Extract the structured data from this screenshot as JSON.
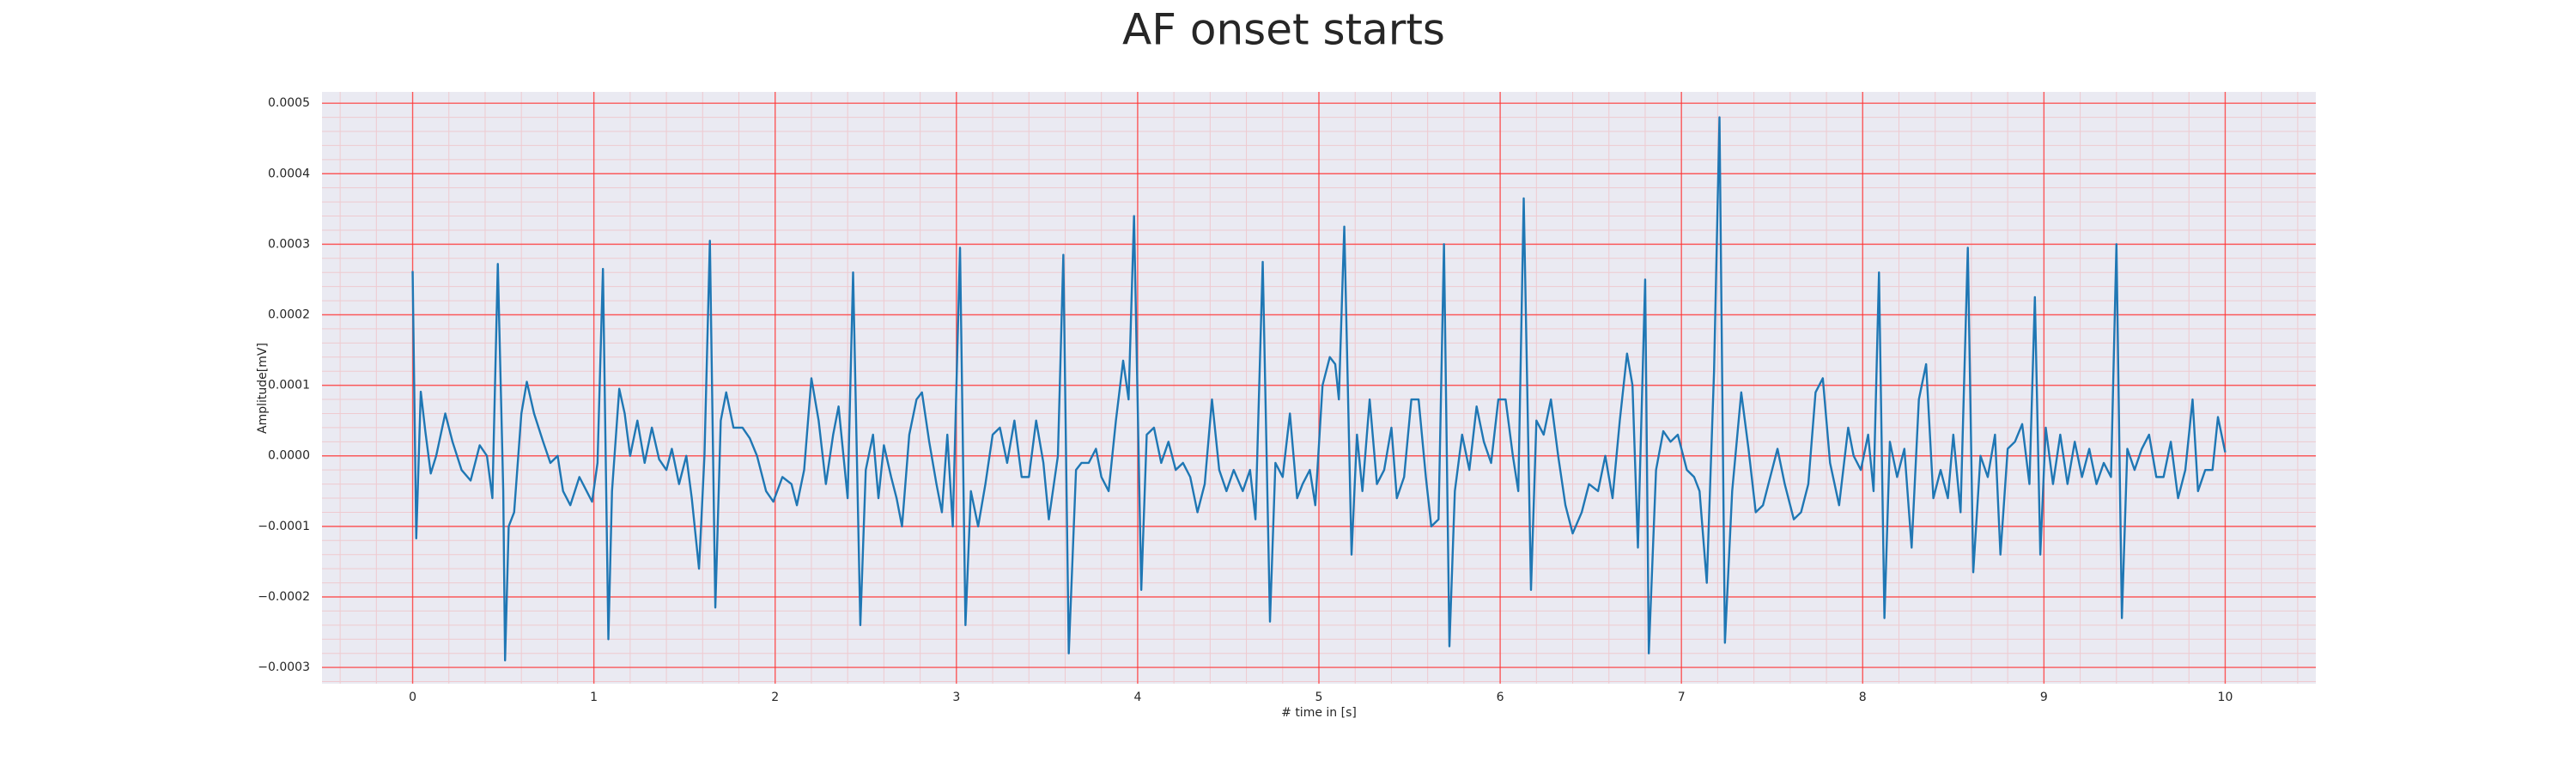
{
  "chart_data": {
    "type": "line",
    "title": "AF onset starts",
    "x_label": "# time in [s]",
    "y_label": "Amplitude[mV]",
    "color": "#1f77b4",
    "grid": true,
    "minor_grid": true,
    "xlim": [
      -0.5,
      10.5
    ],
    "ylim": [
      -0.000323,
      0.000516
    ],
    "xticks": [
      0,
      1,
      2,
      3,
      4,
      5,
      6,
      7,
      8,
      9,
      10
    ],
    "yticks": [
      {
        "value": -0.0003,
        "label": "−0.0003"
      },
      {
        "value": -0.0002,
        "label": "−0.0002"
      },
      {
        "value": -0.0001,
        "label": "−0.0001"
      },
      {
        "value": 0,
        "label": "0.0000"
      },
      {
        "value": 0.0001,
        "label": "0.0001"
      },
      {
        "value": 0.0002,
        "label": "0.0002"
      },
      {
        "value": 0.0003,
        "label": "0.0003"
      },
      {
        "value": 0.0004,
        "label": "0.0004"
      },
      {
        "value": 0.0005,
        "label": "0.0005"
      }
    ],
    "x": [
      0,
      0.02,
      0.045,
      0.07,
      0.1,
      0.13,
      0.18,
      0.22,
      0.27,
      0.32,
      0.37,
      0.41,
      0.44,
      0.47,
      0.5,
      0.51,
      0.53,
      0.56,
      0.6,
      0.63,
      0.67,
      0.72,
      0.76,
      0.8,
      0.83,
      0.87,
      0.92,
      0.96,
      0.99,
      1.02,
      1.05,
      1.08,
      1.1,
      1.14,
      1.17,
      1.2,
      1.24,
      1.28,
      1.32,
      1.36,
      1.4,
      1.43,
      1.47,
      1.51,
      1.54,
      1.58,
      1.61,
      1.64,
      1.67,
      1.7,
      1.73,
      1.77,
      1.82,
      1.86,
      1.9,
      1.95,
      1.99,
      2.04,
      2.09,
      2.12,
      2.16,
      2.2,
      2.24,
      2.28,
      2.32,
      2.35,
      2.4,
      2.43,
      2.47,
      2.5,
      2.54,
      2.57,
      2.6,
      2.64,
      2.67,
      2.7,
      2.74,
      2.78,
      2.81,
      2.85,
      2.89,
      2.92,
      2.95,
      2.98,
      3.02,
      3.05,
      3.08,
      3.12,
      3.16,
      3.2,
      3.24,
      3.28,
      3.32,
      3.36,
      3.4,
      3.44,
      3.48,
      3.51,
      3.56,
      3.59,
      3.62,
      3.66,
      3.69,
      3.73,
      3.77,
      3.8,
      3.84,
      3.88,
      3.92,
      3.95,
      3.98,
      4.02,
      4.05,
      4.09,
      4.13,
      4.17,
      4.21,
      4.25,
      4.29,
      4.33,
      4.37,
      4.41,
      4.45,
      4.49,
      4.53,
      4.58,
      4.62,
      4.65,
      4.69,
      4.73,
      4.76,
      4.8,
      4.84,
      4.88,
      4.91,
      4.95,
      4.98,
      5.02,
      5.06,
      5.09,
      5.11,
      5.14,
      5.18,
      5.21,
      5.24,
      5.28,
      5.32,
      5.36,
      5.4,
      5.43,
      5.47,
      5.51,
      5.55,
      5.59,
      5.62,
      5.66,
      5.69,
      5.72,
      5.75,
      5.79,
      5.83,
      5.87,
      5.91,
      5.95,
      5.99,
      6.03,
      6.07,
      6.1,
      6.13,
      6.17,
      6.2,
      6.24,
      6.28,
      6.32,
      6.36,
      6.4,
      6.45,
      6.49,
      6.54,
      6.58,
      6.62,
      6.66,
      6.7,
      6.73,
      6.76,
      6.8,
      6.82,
      6.86,
      6.9,
      6.94,
      6.98,
      7.03,
      7.07,
      7.1,
      7.14,
      7.18,
      7.21,
      7.24,
      7.28,
      7.33,
      7.37,
      7.41,
      7.45,
      7.49,
      7.53,
      7.57,
      7.62,
      7.66,
      7.7,
      7.74,
      7.78,
      7.82,
      7.87,
      7.92,
      7.95,
      7.99,
      8.03,
      8.06,
      8.09,
      8.12,
      8.15,
      8.19,
      8.23,
      8.27,
      8.31,
      8.35,
      8.39,
      8.43,
      8.47,
      8.5,
      8.54,
      8.58,
      8.61,
      8.65,
      8.69,
      8.73,
      8.76,
      8.8,
      8.84,
      8.88,
      8.92,
      8.95,
      8.98,
      9.01,
      9.05,
      9.09,
      9.13,
      9.17,
      9.21,
      9.25,
      9.29,
      9.33,
      9.37,
      9.4,
      9.43,
      9.46,
      9.5,
      9.54,
      9.58,
      9.62,
      9.66,
      9.7,
      9.74,
      9.78,
      9.82,
      9.85,
      9.89,
      9.93,
      9.96,
      10
    ],
    "values": [
      0.000262,
      -0.000117,
      9.1e-05,
      3.5e-05,
      -2.5e-05,
      0,
      6e-05,
      2e-05,
      -2e-05,
      -3.5e-05,
      1.5e-05,
      0,
      -6e-05,
      0.000272,
      -5e-05,
      -0.00029,
      -0.0001,
      -8e-05,
      6e-05,
      0.000105,
      6e-05,
      2e-05,
      -1e-05,
      0,
      -5e-05,
      -7e-05,
      -3e-05,
      -5e-05,
      -6.5e-05,
      -1e-05,
      0.000265,
      -0.00026,
      -5e-05,
      9.5e-05,
      6e-05,
      0,
      5e-05,
      -1e-05,
      4e-05,
      -5e-06,
      -2e-05,
      1e-05,
      -4e-05,
      0,
      -6e-05,
      -0.00016,
      0,
      0.000305,
      -0.000215,
      5e-05,
      9e-05,
      4e-05,
      4e-05,
      2.5e-05,
      0,
      -5e-05,
      -6.5e-05,
      -3e-05,
      -4e-05,
      -7e-05,
      -2e-05,
      0.00011,
      5e-05,
      -4e-05,
      3e-05,
      7e-05,
      -6e-05,
      0.00026,
      -0.00024,
      -2e-05,
      3e-05,
      -6e-05,
      1.5e-05,
      -3e-05,
      -6e-05,
      -0.0001,
      3e-05,
      8e-05,
      9e-05,
      2e-05,
      -4e-05,
      -8e-05,
      3e-05,
      -0.0001,
      0.000295,
      -0.00024,
      -5e-05,
      -0.0001,
      -4e-05,
      3e-05,
      4e-05,
      -1e-05,
      5e-05,
      -3e-05,
      -3e-05,
      5e-05,
      -1e-05,
      -9e-05,
      0,
      0.000285,
      -0.00028,
      -2e-05,
      -1e-05,
      -1e-05,
      1e-05,
      -3e-05,
      -5e-05,
      5e-05,
      0.000135,
      8e-05,
      0.00034,
      -0.00019,
      3e-05,
      4e-05,
      -1e-05,
      2e-05,
      -2e-05,
      -1e-05,
      -3e-05,
      -8e-05,
      -4e-05,
      8e-05,
      -2e-05,
      -5e-05,
      -2e-05,
      -5e-05,
      -2e-05,
      -9e-05,
      0.000275,
      -0.000235,
      -1e-05,
      -3e-05,
      6e-05,
      -6e-05,
      -4e-05,
      -2e-05,
      -7e-05,
      0.0001,
      0.00014,
      0.00013,
      8e-05,
      0.000325,
      -0.00014,
      3e-05,
      -5e-05,
      8e-05,
      -4e-05,
      -2e-05,
      4e-05,
      -6e-05,
      -3e-05,
      8e-05,
      8e-05,
      -3e-05,
      -0.0001,
      -9e-05,
      0.0003,
      -0.00027,
      -5e-05,
      3e-05,
      -2e-05,
      7e-05,
      2e-05,
      -1e-05,
      8e-05,
      8e-05,
      0,
      -5e-05,
      0.000365,
      -0.00019,
      5e-05,
      3e-05,
      8e-05,
      0,
      -7e-05,
      -0.00011,
      -8e-05,
      -4e-05,
      -5e-05,
      0,
      -6e-05,
      5e-05,
      0.000145,
      0.0001,
      -0.00013,
      0.00025,
      -0.00028,
      -2e-05,
      3.5e-05,
      2e-05,
      3e-05,
      -2e-05,
      -3e-05,
      -5e-05,
      -0.00018,
      0.00012,
      0.00048,
      -0.000265,
      -5e-05,
      9e-05,
      1e-05,
      -8e-05,
      -7e-05,
      -3e-05,
      1e-05,
      -4e-05,
      -9e-05,
      -8e-05,
      -4e-05,
      9e-05,
      0.00011,
      -1e-05,
      -7e-05,
      4e-05,
      0,
      -2e-05,
      3e-05,
      -5e-05,
      0.00026,
      -0.00023,
      2e-05,
      -3e-05,
      1e-05,
      -0.00013,
      8e-05,
      0.00013,
      -6e-05,
      -2e-05,
      -6e-05,
      3e-05,
      -8e-05,
      0.000295,
      -0.000165,
      0,
      -3e-05,
      3e-05,
      -0.00014,
      1e-05,
      2e-05,
      4.5e-05,
      -4e-05,
      0.000225,
      -0.00014,
      4e-05,
      -4e-05,
      3e-05,
      -4e-05,
      2e-05,
      -3e-05,
      1e-05,
      -4e-05,
      -1e-05,
      -3e-05,
      0.0003,
      -0.00023,
      1e-05,
      -2e-05,
      1e-05,
      3e-05,
      -3e-05,
      -3e-05,
      2e-05,
      -6e-05,
      -2e-05,
      8e-05,
      -5e-05,
      -2e-05,
      -2e-05,
      5.5e-05,
      5e-06
    ]
  }
}
